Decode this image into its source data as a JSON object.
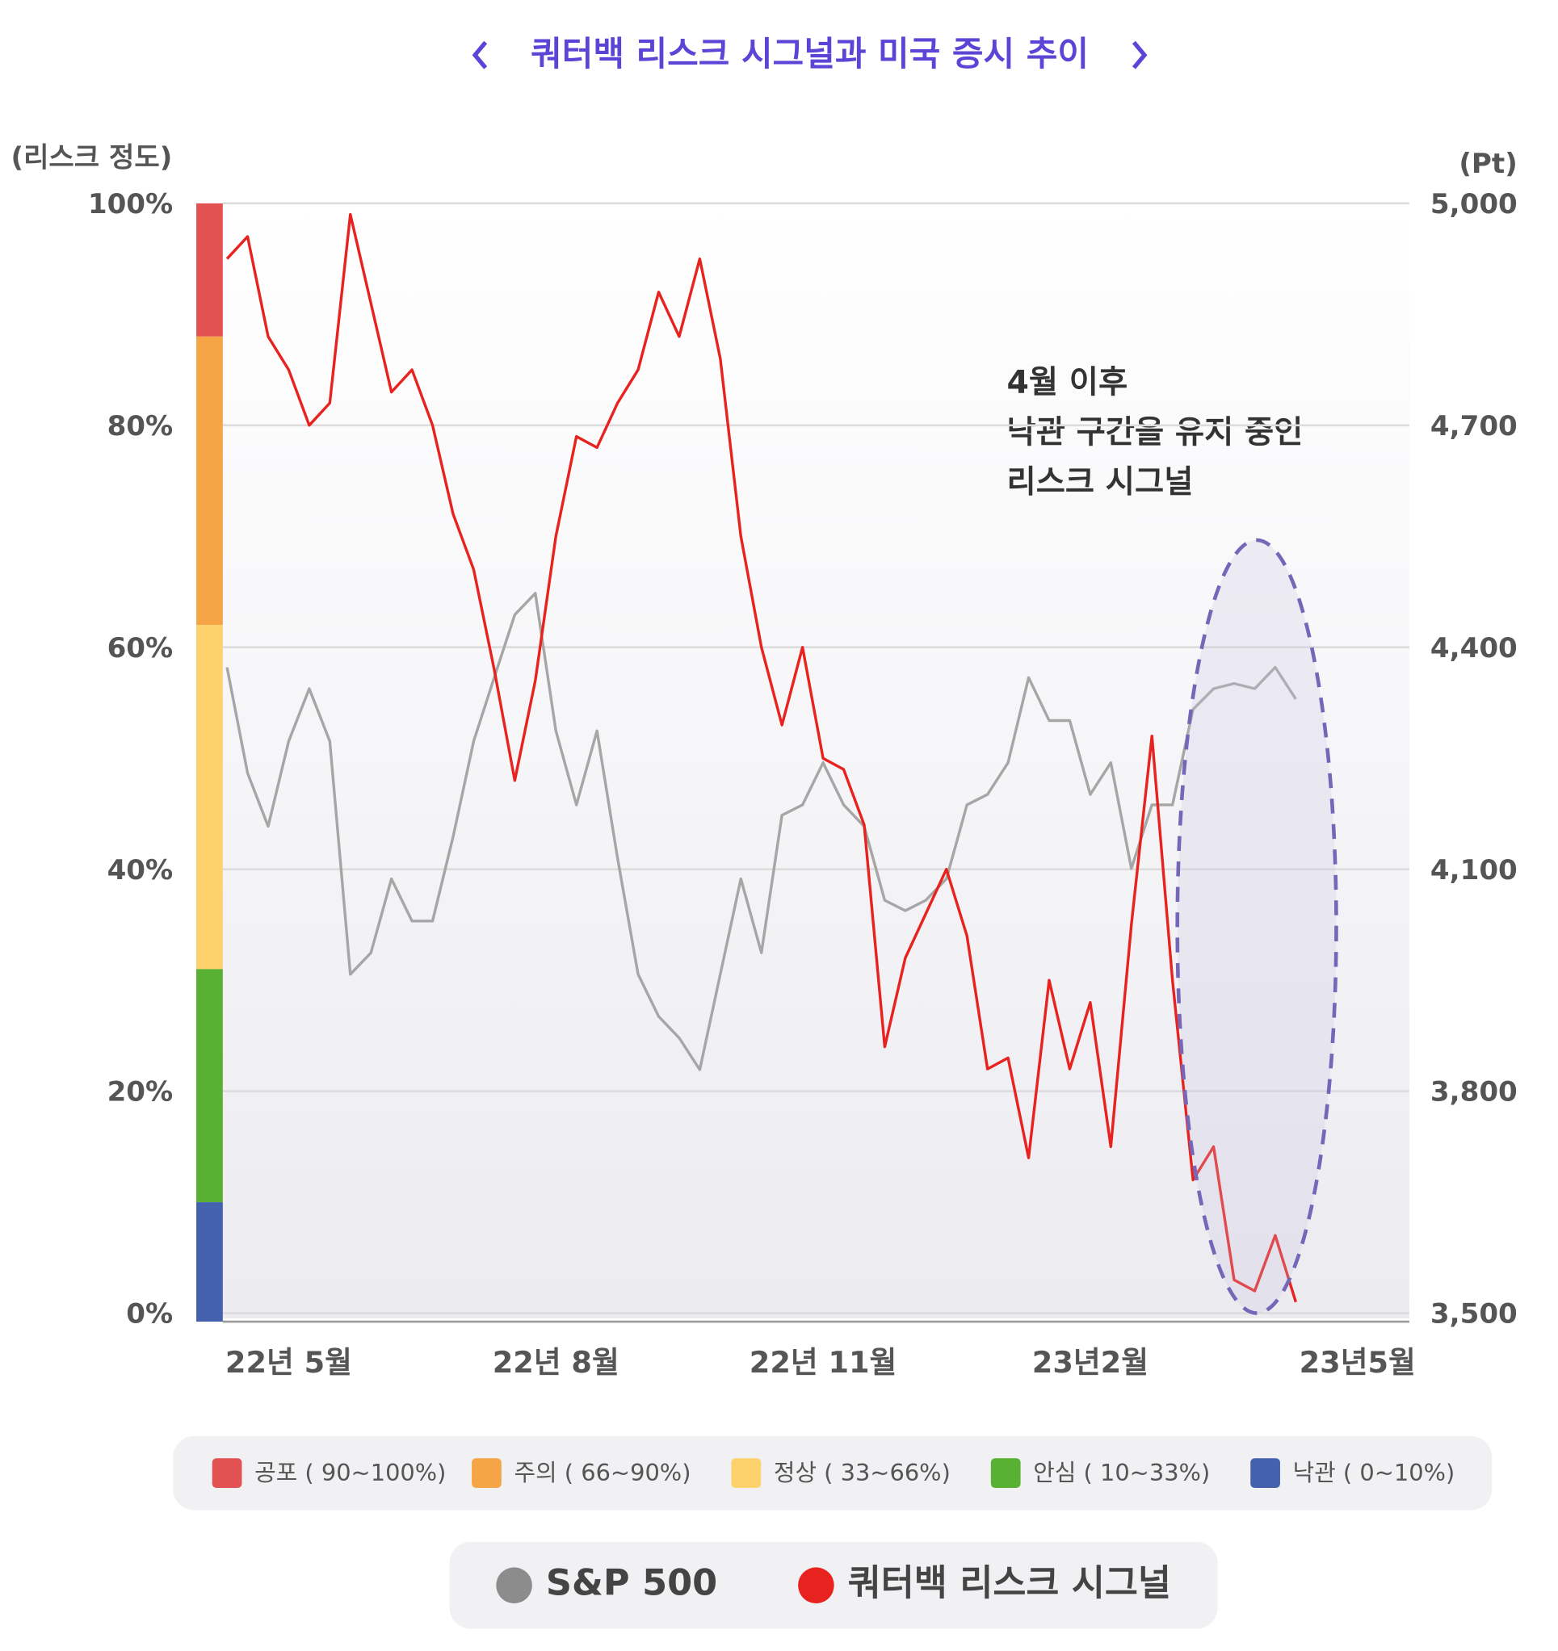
{
  "chart_data": {
    "type": "line",
    "title": "쿼터백 리스크 시그널과 미국 증시 추이",
    "y_label": "(리스크 정도)",
    "y2_label": "(Pt)",
    "annotation": [
      "4월 이후",
      "낙관 구간을 유지 중인",
      "리스크 시그널"
    ],
    "categories": [
      null,
      null,
      null,
      "22년 5월",
      null,
      null,
      null,
      null,
      null,
      null,
      null,
      null,
      null,
      null,
      null,
      null,
      "22년 8월",
      null,
      null,
      null,
      null,
      null,
      null,
      null,
      null,
      null,
      null,
      null,
      null,
      "22년 11월",
      null,
      null,
      null,
      null,
      null,
      null,
      null,
      null,
      null,
      null,
      null,
      null,
      "23년2월",
      null,
      null,
      null,
      null,
      null,
      null,
      null,
      null,
      null,
      null,
      null,
      null,
      "23년5월"
    ],
    "series": [
      {
        "name": "S&P 500",
        "color": "#a6a6a6",
        "legend_color": "#8c8c8c",
        "axis": "y2",
        "values": [
          4373,
          4230,
          4158,
          4273,
          4344,
          4273,
          3958,
          3987,
          4087,
          4030,
          4030,
          4144,
          4273,
          4359,
          4444,
          4473,
          4287,
          4187,
          4287,
          4115,
          3958,
          3901,
          3872,
          3829,
          3958,
          4087,
          3987,
          4173,
          4187,
          4244,
          4187,
          4158,
          4058,
          4044,
          4058,
          4087,
          4187,
          4201,
          4244,
          4359,
          4301,
          4301,
          4201,
          4244,
          4101,
          4187,
          4187,
          4316,
          4344,
          4351,
          4344,
          4373,
          4330,
          null,
          null,
          null
        ]
      },
      {
        "name": "쿼터백 리스크 시그널",
        "color": "#e8231f",
        "legend_color": "#e8231f",
        "values": [
          95,
          97,
          88,
          85,
          80,
          82,
          99,
          91,
          83,
          85,
          80,
          72,
          67,
          58,
          48,
          57,
          70,
          79,
          78,
          82,
          85,
          92,
          88,
          95,
          86,
          70,
          60,
          53,
          60,
          50,
          49,
          44,
          24,
          32,
          36,
          40,
          34,
          22,
          23,
          14,
          30,
          22,
          28,
          15,
          35,
          52,
          30,
          12,
          15,
          3,
          2,
          7,
          1,
          null,
          null,
          null
        ]
      }
    ],
    "ylim": [
      0,
      100
    ],
    "yticks": [
      {
        "value": 0,
        "label": "0%"
      },
      {
        "value": 20,
        "label": "20%"
      },
      {
        "value": 40,
        "label": "40%"
      },
      {
        "value": 60,
        "label": "60%"
      },
      {
        "value": 80,
        "label": "80%"
      },
      {
        "value": 100,
        "label": "100%"
      }
    ],
    "y2lim": [
      3500,
      5000
    ],
    "y2ticks": [
      {
        "value": 3500,
        "label": "3,500"
      },
      {
        "value": 3800,
        "label": "3,800"
      },
      {
        "value": 4100,
        "label": "4,100"
      },
      {
        "value": 4400,
        "label": "4,400"
      },
      {
        "value": 4700,
        "label": "4,700"
      },
      {
        "value": 5000,
        "label": "5,000"
      }
    ],
    "grid": true,
    "bands": [
      {
        "label": "공포 ( 90~100%)",
        "color": "#e35252",
        "range": [
          88,
          100
        ]
      },
      {
        "label": "주의 ( 66~90%)",
        "color": "#f5a546",
        "range": [
          62,
          88
        ]
      },
      {
        "label": "정상 ( 33~66%)",
        "color": "#fdd16c",
        "range": [
          31,
          62
        ]
      },
      {
        "label": "안심 ( 10~33%)",
        "color": "#58b133",
        "range": [
          10,
          31
        ]
      },
      {
        "label": "낙관 ( 0~10%)",
        "color": "#4461ad",
        "range": [
          0,
          10
        ]
      }
    ]
  }
}
